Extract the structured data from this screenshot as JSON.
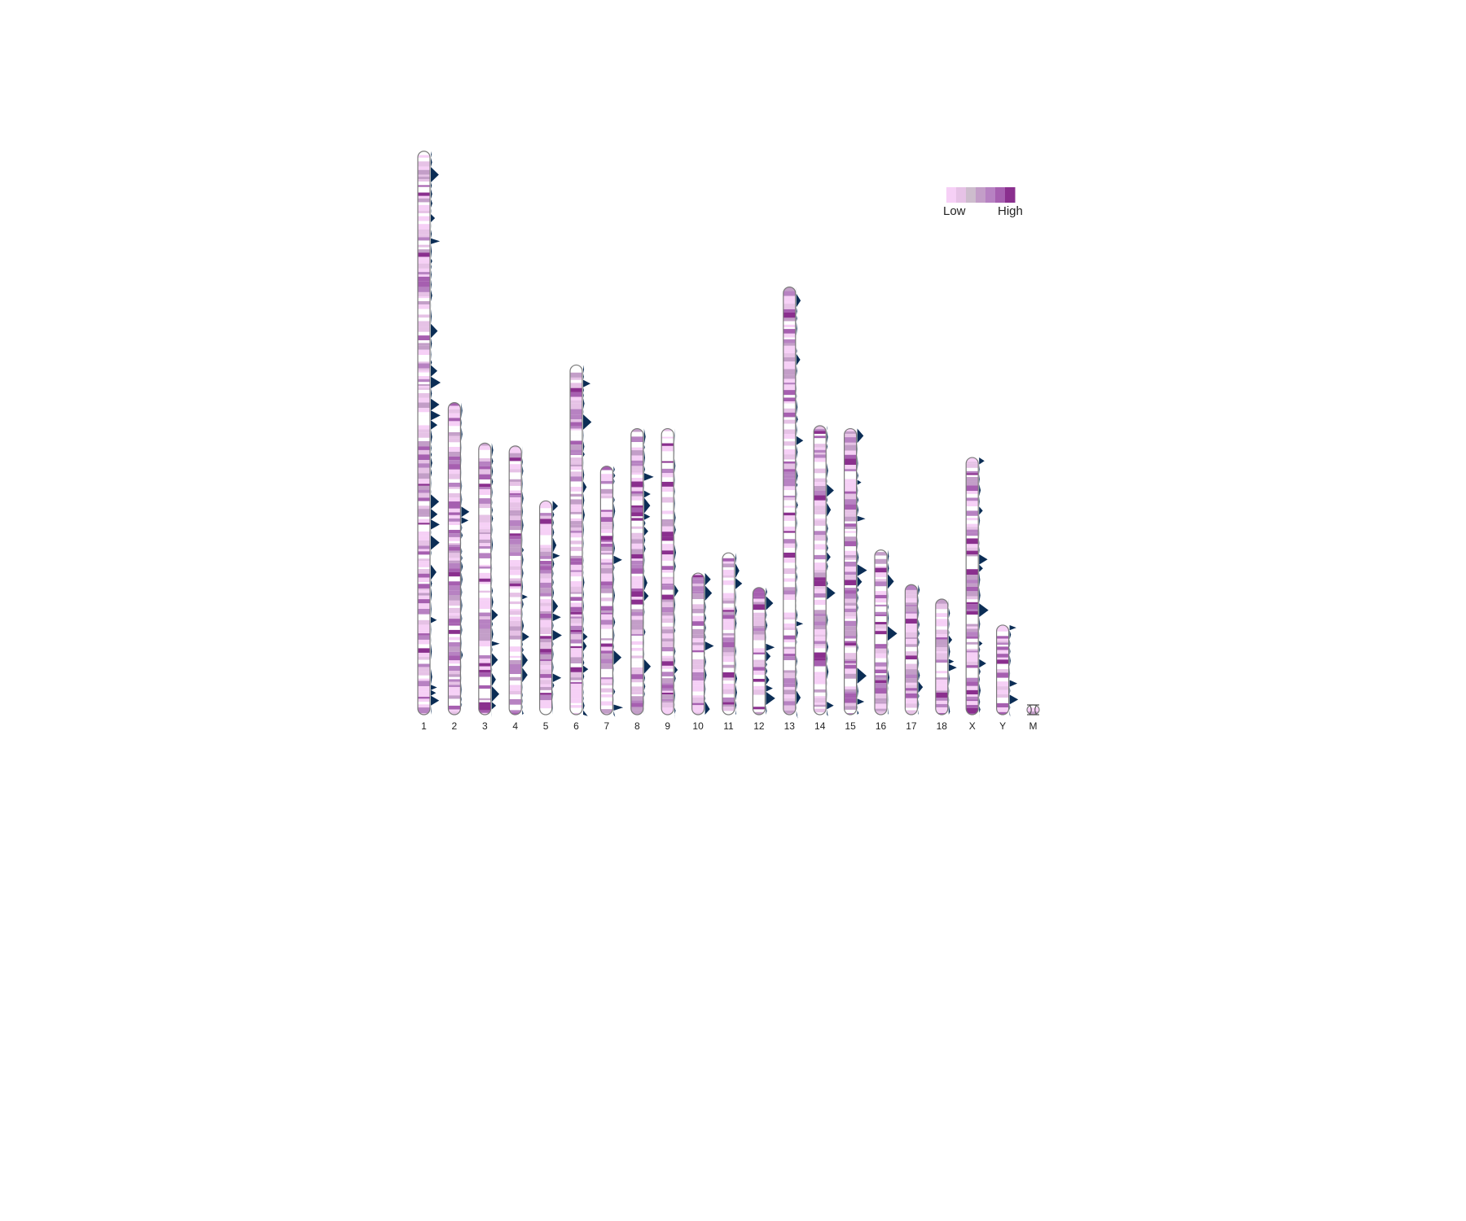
{
  "chart_data": {
    "type": "heatmap",
    "legend": {
      "low_label": "Low",
      "high_label": "High",
      "position": "top-right"
    },
    "colors": {
      "scale": [
        "#f6d0f6",
        "#e6c2e6",
        "#cdbdcd",
        "#c39ec8",
        "#b782c2",
        "#a65fb0",
        "#8a2f8e"
      ],
      "density_peaks": "#0b2d55",
      "outline": "#7a7a7a"
    },
    "chromosomes": [
      {
        "label": "1",
        "length": 195,
        "centromere": 3
      },
      {
        "label": "2",
        "length": 108,
        "centromere": 3
      },
      {
        "label": "3",
        "length": 94,
        "centromere": 3
      },
      {
        "label": "4",
        "length": 93,
        "centromere": 3
      },
      {
        "label": "5",
        "length": 74,
        "centromere": 3
      },
      {
        "label": "6",
        "length": 121,
        "centromere": 3
      },
      {
        "label": "7",
        "length": 86,
        "centromere": 3
      },
      {
        "label": "8",
        "length": 99,
        "centromere": 3
      },
      {
        "label": "9",
        "length": 99,
        "centromere": 3
      },
      {
        "label": "10",
        "length": 49,
        "centromere": 3
      },
      {
        "label": "11",
        "length": 56,
        "centromere": 3
      },
      {
        "label": "12",
        "length": 44,
        "centromere": 3
      },
      {
        "label": "13",
        "length": 148,
        "centromere": 3
      },
      {
        "label": "14",
        "length": 100,
        "centromere": 3
      },
      {
        "label": "15",
        "length": 99,
        "centromere": 3
      },
      {
        "label": "16",
        "length": 57,
        "centromere": 3
      },
      {
        "label": "17",
        "length": 45,
        "centromere": 3
      },
      {
        "label": "18",
        "length": 40,
        "centromere": 3
      },
      {
        "label": "X",
        "length": 89,
        "centromere": 3
      },
      {
        "label": "Y",
        "length": 31,
        "centromere": 3
      },
      {
        "label": "M",
        "length": 2,
        "centromere": 0
      }
    ]
  }
}
